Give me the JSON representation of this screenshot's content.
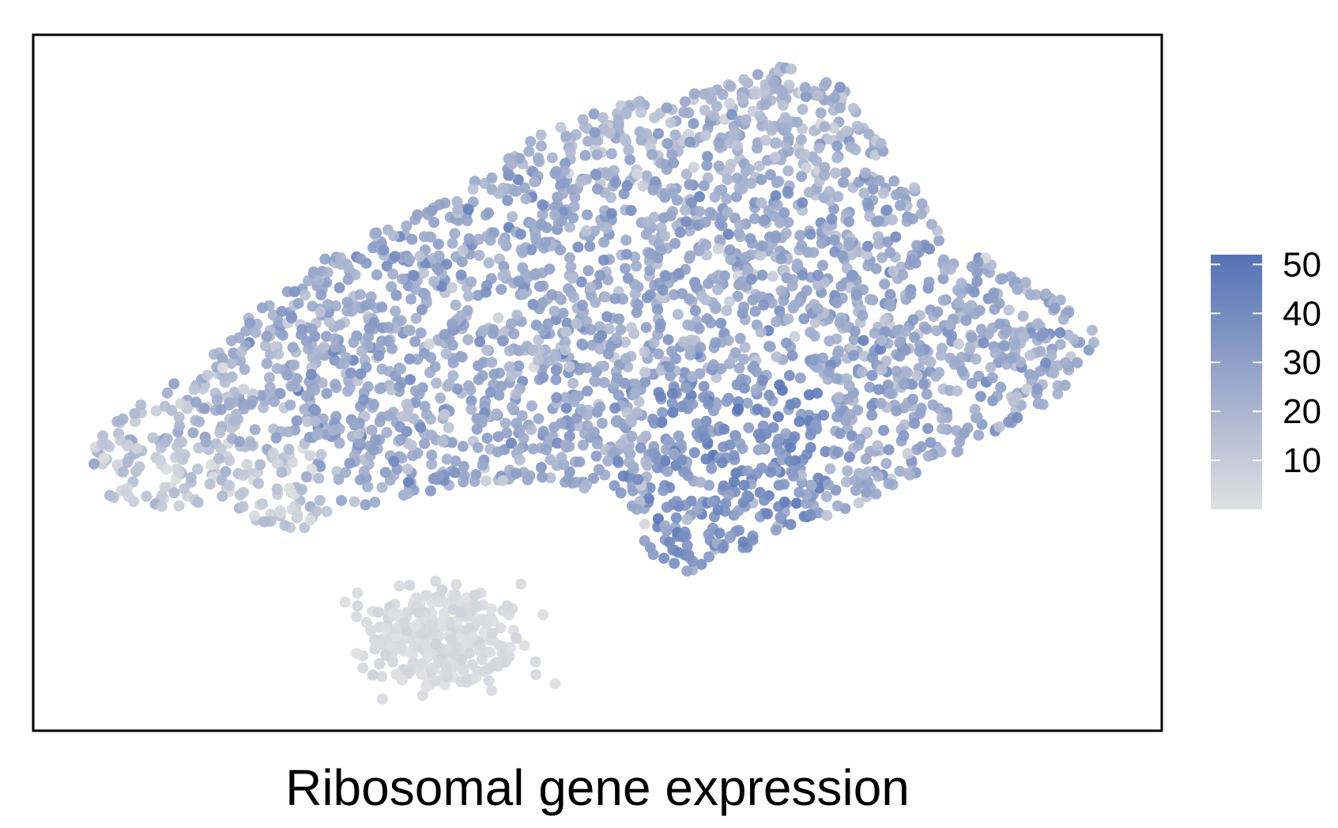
{
  "chart_data": {
    "type": "scatter",
    "title": "",
    "xlabel": "Ribosomal gene expression",
    "ylabel": "",
    "axes_ticks_shown": false,
    "grid": false,
    "point_count_estimate": 3200,
    "colorbar": {
      "range": [
        0,
        52
      ],
      "ticks": [
        10,
        20,
        30,
        40,
        50
      ],
      "tick_labels": [
        "10",
        "20",
        "30",
        "40",
        "50"
      ],
      "low_color": "#e0e0e0",
      "high_color": "#5572b5",
      "placement": "right"
    },
    "clusters": [
      {
        "label_shown": false,
        "center": [
          0.5,
          0.45
        ],
        "spread": "large",
        "expression_mean": 28
      },
      {
        "label_shown": false,
        "center": [
          0.37,
          0.91
        ],
        "spread": "small",
        "expression_mean": 3
      }
    ]
  }
}
